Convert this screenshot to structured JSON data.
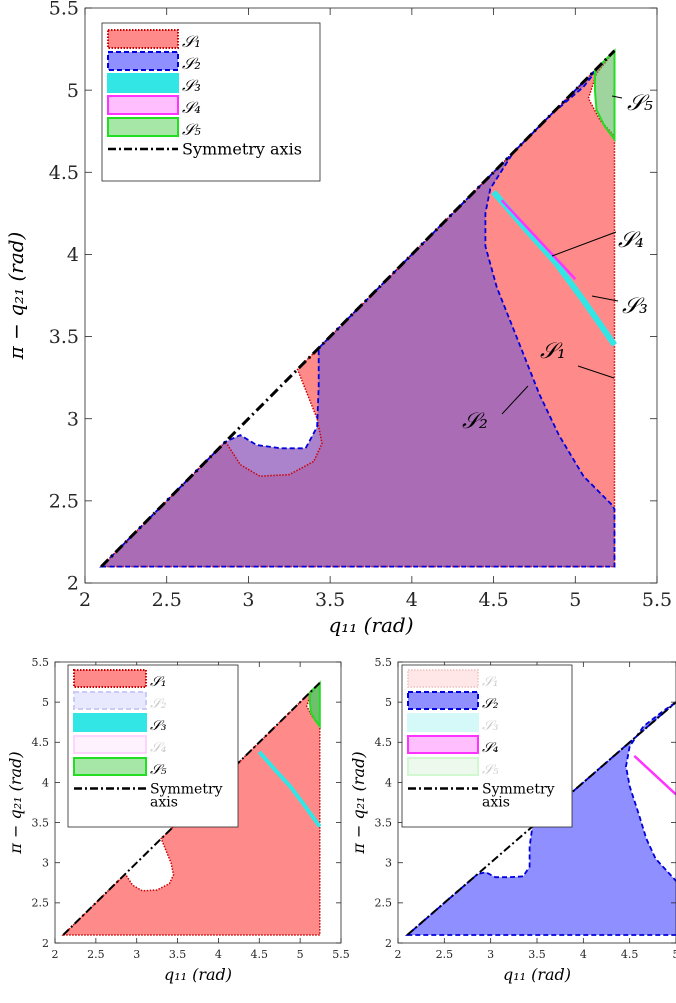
{
  "chart_data": [
    {
      "type": "area",
      "panel": "main",
      "xlabel": "q₁₁  (rad)",
      "ylabel": "π − q₂₁  (rad)",
      "xlim": [
        2,
        5.5
      ],
      "ylim": [
        2,
        5.5
      ],
      "xticks": [
        "2",
        "2.5",
        "3",
        "3.5",
        "4",
        "4.5",
        "5",
        "5.5"
      ],
      "yticks": [
        "2",
        "2.5",
        "3",
        "3.5",
        "4",
        "4.5",
        "5",
        "5.5"
      ],
      "legend_placement": "top-left",
      "legend": [
        "𝒮₁",
        "𝒮₂",
        "𝒮₃",
        "𝒮₄",
        "𝒮₅",
        "Symmetry axis"
      ],
      "annotations": [
        "𝒮₁",
        "𝒮₂",
        "𝒮₃",
        "𝒮₄",
        "𝒮₅"
      ],
      "colors": {
        "S1": "#ff8a8a",
        "S2": "#8f8fff",
        "S3": "#33e6e6",
        "S4": "#ff33ff",
        "S5": "#33cc33"
      },
      "series": [
        {
          "name": "𝒮₁",
          "boundary_x": [
            2.1,
            5.24,
            5.24,
            4.4,
            3.4,
            3.3,
            3.35,
            3.4,
            3.45,
            3.4,
            3.25,
            3.05,
            2.9,
            2.85,
            2.1
          ],
          "boundary_y": [
            2.1,
            2.1,
            4.75,
            4.4,
            3.4,
            3.3,
            3.1,
            2.95,
            2.8,
            2.7,
            2.65,
            2.65,
            2.75,
            2.85,
            2.1
          ]
        },
        {
          "name": "𝒮₂",
          "boundary_x": [
            2.1,
            5.24,
            5.24,
            4.6,
            4.4,
            4.5,
            4.6,
            4.8,
            5.15,
            3.45,
            3.4,
            3.25,
            3.05,
            2.9,
            2.1
          ],
          "boundary_y": [
            2.1,
            2.1,
            2.45,
            3.5,
            3.9,
            4.4,
            4.7,
            4.9,
            5.15,
            3.45,
            2.85,
            2.8,
            2.8,
            2.85,
            2.1
          ]
        },
        {
          "name": "𝒮₃",
          "x": [
            4.5,
            4.8,
            5.0,
            5.24
          ],
          "y": [
            4.38,
            4.0,
            3.75,
            3.45
          ]
        },
        {
          "name": "𝒮₄",
          "x": [
            4.55,
            5.0
          ],
          "y": [
            4.32,
            3.85
          ]
        },
        {
          "name": "𝒮₅",
          "boundary_x": [
            5.13,
            5.24,
            5.24,
            5.13,
            5.13
          ],
          "boundary_y": [
            5.1,
            5.22,
            4.7,
            4.9,
            5.1
          ]
        },
        {
          "name": "Symmetry axis",
          "x": [
            2.1,
            5.24
          ],
          "y": [
            2.1,
            5.24
          ]
        }
      ]
    },
    {
      "type": "area",
      "panel": "bottom-left",
      "xlabel": "q₁₁  (rad)",
      "ylabel": "π − q₂₁  (rad)",
      "xlim": [
        2,
        5.5
      ],
      "ylim": [
        2,
        5.5
      ],
      "xticks": [
        "2",
        "2.5",
        "3",
        "3.5",
        "4",
        "4.5",
        "5",
        "5.5"
      ],
      "yticks": [
        "2",
        "2.5",
        "3",
        "3.5",
        "4",
        "4.5",
        "5",
        "5.5"
      ],
      "legend_placement": "top-left",
      "legend": [
        "𝒮₁",
        "𝒮₂",
        "𝒮₃",
        "𝒮₄",
        "𝒮₅",
        "Symmetry",
        "axis"
      ],
      "series": [
        {
          "name": "𝒮₁"
        },
        {
          "name": "𝒮₃"
        },
        {
          "name": "𝒮₅"
        },
        {
          "name": "Symmetry axis"
        }
      ]
    },
    {
      "type": "area",
      "panel": "bottom-right",
      "xlabel": "q₁₁  (rad)",
      "ylabel": "π − q₂₁  (rad)",
      "xlim": [
        2,
        5
      ],
      "ylim": [
        2,
        5.5
      ],
      "xticks": [
        "2",
        "2.5",
        "3",
        "3.5",
        "4",
        "4.5",
        "5"
      ],
      "yticks": [
        "2",
        "2.5",
        "3",
        "3.5",
        "4",
        "4.5",
        "5",
        "5.5"
      ],
      "legend_placement": "top-left",
      "legend": [
        "𝒮₁",
        "𝒮₂",
        "𝒮₃",
        "𝒮₄",
        "𝒮₅",
        "Symmetry",
        "axis"
      ],
      "series": [
        {
          "name": "𝒮₂"
        },
        {
          "name": "𝒮₄"
        },
        {
          "name": "Symmetry axis"
        }
      ]
    }
  ]
}
